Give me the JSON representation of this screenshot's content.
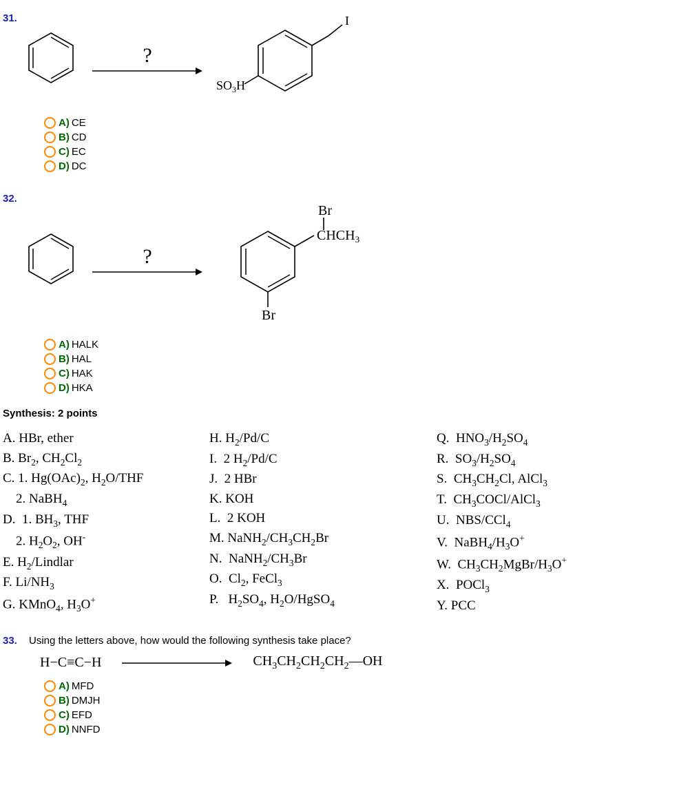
{
  "q31": {
    "number": "31.",
    "arrow_label": "?",
    "start_svg": {
      "ring_stroke": "#000",
      "ring_width": 1.5,
      "size": 78
    },
    "arrow": {
      "length": 160,
      "stroke": "#000"
    },
    "product": {
      "so3h_label": "SO₃H",
      "iodine_label": "I",
      "ring_stroke": "#000"
    },
    "options": [
      {
        "letter": "A)",
        "text": "CE"
      },
      {
        "letter": "B)",
        "text": "CD"
      },
      {
        "letter": "C)",
        "text": "EC"
      },
      {
        "letter": "D)",
        "text": "DC"
      }
    ]
  },
  "q32": {
    "number": "32.",
    "arrow_label": "?",
    "product_labels": {
      "br_top": "Br",
      "chch3": "CHCH₃",
      "br_bottom": "Br"
    },
    "options": [
      {
        "letter": "A)",
        "text": "HALK"
      },
      {
        "letter": "B)",
        "text": "HAL"
      },
      {
        "letter": "C)",
        "text": "HAK"
      },
      {
        "letter": "D)",
        "text": "HKA"
      }
    ]
  },
  "synthesis_heading": "Synthesis: 2 points",
  "reagents": {
    "col1_html": "A. HBr, ether\nB. Br<sub>2</sub>, CH<sub>2</sub>Cl<sub>2</sub>\nC. 1. Hg(OAc)<sub>2</sub>, H<sub>2</sub>O/THF\n    2. NaBH<sub>4</sub>\nD.  1. BH<sub>3</sub>, THF\n    2. H<sub>2</sub>O<sub>2</sub>, OH<sup>-</sup>\nE. H<sub>2</sub>/Lindlar\nF. Li/NH<sub>3</sub>\nG. KMnO<sub>4</sub>, H<sub>3</sub>O<sup>+</sup>",
    "col2_html": "H. H<sub>2</sub>/Pd/C\nI.  2 H<sub>2</sub>/Pd/C\nJ.  2 HBr\nK. KOH\nL.  2 KOH\nM. NaNH<sub>2</sub>/CH<sub>3</sub>CH<sub>2</sub>Br\nN.  NaNH<sub>2</sub>/CH<sub>3</sub>Br\nO.  Cl<sub>2</sub>, FeCl<sub>3</sub>\nP.   H<sub>2</sub>SO<sub>4</sub>, H<sub>2</sub>O/HgSO<sub>4</sub>",
    "col3_html": "Q.  HNO<sub>3</sub>/H<sub>2</sub>SO<sub>4</sub>\nR.  SO<sub>3</sub>/H<sub>2</sub>SO<sub>4</sub>\nS.  CH<sub>3</sub>CH<sub>2</sub>Cl, AlCl<sub>3</sub>\nT.  CH<sub>3</sub>COCl/AlCl<sub>3</sub>\nU.  NBS/CCl<sub>4</sub>\nV.  NaBH<sub>4</sub>/H<sub>3</sub>O<sup>+</sup>\nW.  CH<sub>3</sub>CH<sub>2</sub>MgBr/H<sub>3</sub>O<sup>+</sup>\nX.  POCl<sub>3</sub>\nY. PCC"
  },
  "q33": {
    "number": "33.",
    "prompt": "Using the letters above, how would the following synthesis take place?",
    "left_html": "H−C≡C−H",
    "right_html": "CH<sub>3</sub>CH<sub>2</sub>CH<sub>2</sub>CH<sub>2</sub>—OH",
    "options": [
      {
        "letter": "A)",
        "text": "MFD"
      },
      {
        "letter": "B)",
        "text": "DMJH"
      },
      {
        "letter": "C)",
        "text": "EFD"
      },
      {
        "letter": "D)",
        "text": "NNFD"
      }
    ]
  },
  "colors": {
    "qnum": "#1b1bbe",
    "radio_border": "#ff8800",
    "opt_letter": "#006800"
  }
}
